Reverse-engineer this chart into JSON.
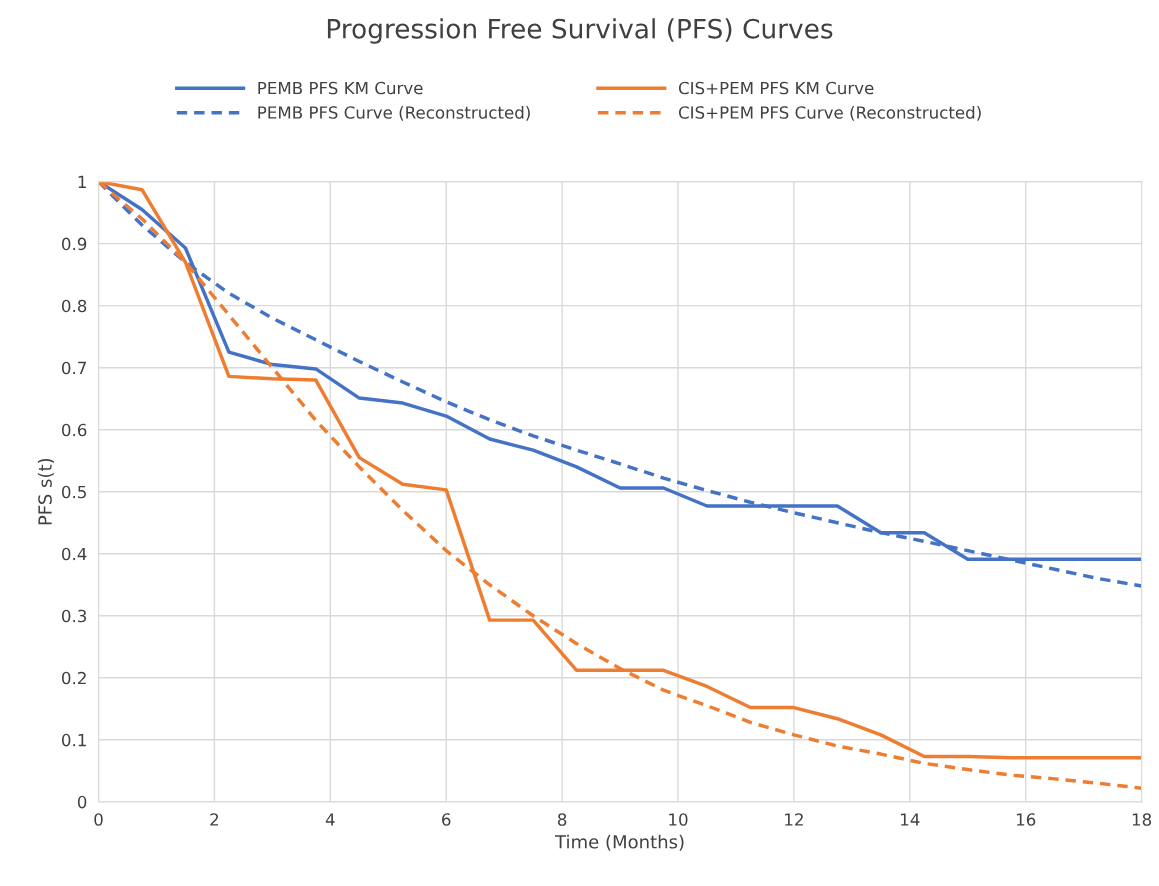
{
  "chart_data": {
    "type": "line",
    "title": "Progression Free Survival (PFS) Curves",
    "xlabel": "Time (Months)",
    "ylabel": "PFS s(t)",
    "x": [
      0,
      0.75,
      1.5,
      2.25,
      3,
      3.75,
      4.5,
      5.25,
      6,
      6.75,
      7.5,
      8.25,
      9,
      9.75,
      10.5,
      11.25,
      12,
      12.75,
      13.5,
      14.25,
      15,
      15.75,
      16.5,
      17.25,
      18
    ],
    "series": [
      {
        "name": "PEMB PFS KM Curve",
        "color": "#4472c4",
        "line_style": "solid",
        "values": [
          1,
          0.955,
          0.893,
          0.725,
          0.705,
          0.698,
          0.651,
          0.643,
          0.622,
          0.585,
          0.567,
          0.54,
          0.506,
          0.506,
          0.477,
          0.477,
          0.477,
          0.477,
          0.434,
          0.434,
          0.391,
          0.391,
          0.391,
          0.391,
          0.391
        ]
      },
      {
        "name": "PEMB PFS Curve (Reconstructed)",
        "color": "#4472c4",
        "line_style": "dashed",
        "values": [
          1,
          0.93,
          0.87,
          0.82,
          0.78,
          0.745,
          0.71,
          0.677,
          0.645,
          0.616,
          0.59,
          0.567,
          0.545,
          0.522,
          0.502,
          0.483,
          0.466,
          0.45,
          0.434,
          0.42,
          0.405,
          0.39,
          0.375,
          0.36,
          0.348
        ]
      },
      {
        "name": "CIS+PEM PFS KM Curve",
        "color": "#ed7d31",
        "line_style": "solid",
        "values": [
          1,
          0.987,
          0.87,
          0.686,
          0.682,
          0.68,
          0.555,
          0.512,
          0.503,
          0.293,
          0.293,
          0.212,
          0.212,
          0.212,
          0.186,
          0.152,
          0.152,
          0.134,
          0.108,
          0.073,
          0.073,
          0.071,
          0.071,
          0.071,
          0.071
        ]
      },
      {
        "name": "CIS+PEM PFS Curve (Reconstructed)",
        "color": "#ed7d31",
        "line_style": "dashed",
        "values": [
          1,
          0.94,
          0.87,
          0.785,
          0.7,
          0.615,
          0.54,
          0.47,
          0.405,
          0.35,
          0.3,
          0.255,
          0.215,
          0.18,
          0.155,
          0.128,
          0.108,
          0.09,
          0.077,
          0.062,
          0.052,
          0.043,
          0.037,
          0.03,
          0.022
        ]
      }
    ],
    "xlim": [
      0,
      18
    ],
    "xticks": [
      0,
      2,
      4,
      6,
      8,
      10,
      12,
      14,
      16,
      18
    ],
    "ylim": [
      0,
      1
    ],
    "yticks": [
      0,
      0.1,
      0.2,
      0.3,
      0.4,
      0.5,
      0.6,
      0.7,
      0.8,
      0.9,
      1
    ],
    "grid": true,
    "legend": "top",
    "marker": "none"
  }
}
